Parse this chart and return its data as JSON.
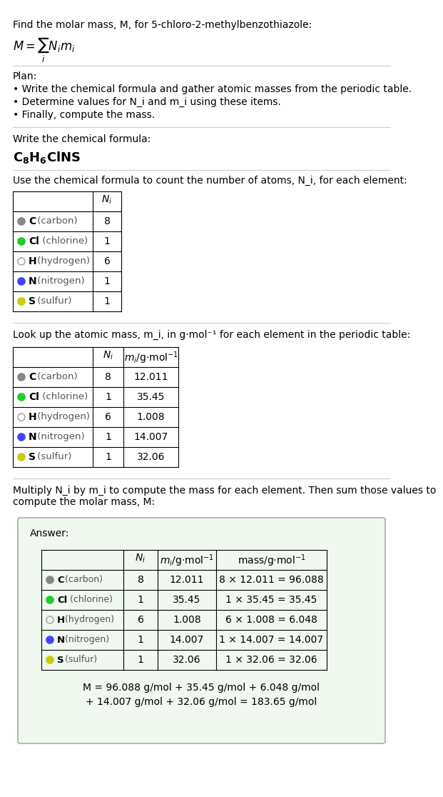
{
  "title_line1": "Find the molar mass, M, for 5-chloro-2-methylbenzothiazole:",
  "title_formula": "M = Σ N_i m_i",
  "plan_header": "Plan:",
  "plan_items": [
    "• Write the chemical formula and gather atomic masses from the periodic table.",
    "• Determine values for N_i and m_i using these items.",
    "• Finally, compute the mass."
  ],
  "formula_header": "Write the chemical formula:",
  "chemical_formula": "C₈H₆ClNS",
  "table1_header": "Use the chemical formula to count the number of atoms, N_i, for each element:",
  "table2_header": "Look up the atomic mass, m_i, in g·mol⁻¹ for each element in the periodic table:",
  "table3_header": "Multiply N_i by m_i to compute the mass for each element. Then sum those values to\ncompute the molar mass, M:",
  "elements": [
    "C (carbon)",
    "Cl (chlorine)",
    "H (hydrogen)",
    "N (nitrogen)",
    "S (sulfur)"
  ],
  "element_symbols": [
    "C",
    "Cl",
    "H",
    "N",
    "S"
  ],
  "dot_colors": [
    "#888888",
    "#22cc22",
    "none",
    "#4444ff",
    "#cccc00"
  ],
  "dot_edge_colors": [
    "#888888",
    "#22cc22",
    "#aaaaaa",
    "#4444ff",
    "#cccc00"
  ],
  "Ni": [
    8,
    1,
    6,
    1,
    1
  ],
  "mi": [
    12.011,
    35.45,
    1.008,
    14.007,
    32.06
  ],
  "mass_expressions": [
    "8 × 12.011 = 96.088",
    "1 × 35.45 = 35.45",
    "6 × 1.008 = 6.048",
    "1 × 14.007 = 14.007",
    "1 × 32.06 = 32.06"
  ],
  "final_line1": "M = 96.088 g/mol + 35.45 g/mol + 6.048 g/mol",
  "final_line2": "+ 14.007 g/mol + 32.06 g/mol = 183.65 g/mol",
  "answer_box_color": "#e8f4e8",
  "answer_box_border": "#aaccaa"
}
